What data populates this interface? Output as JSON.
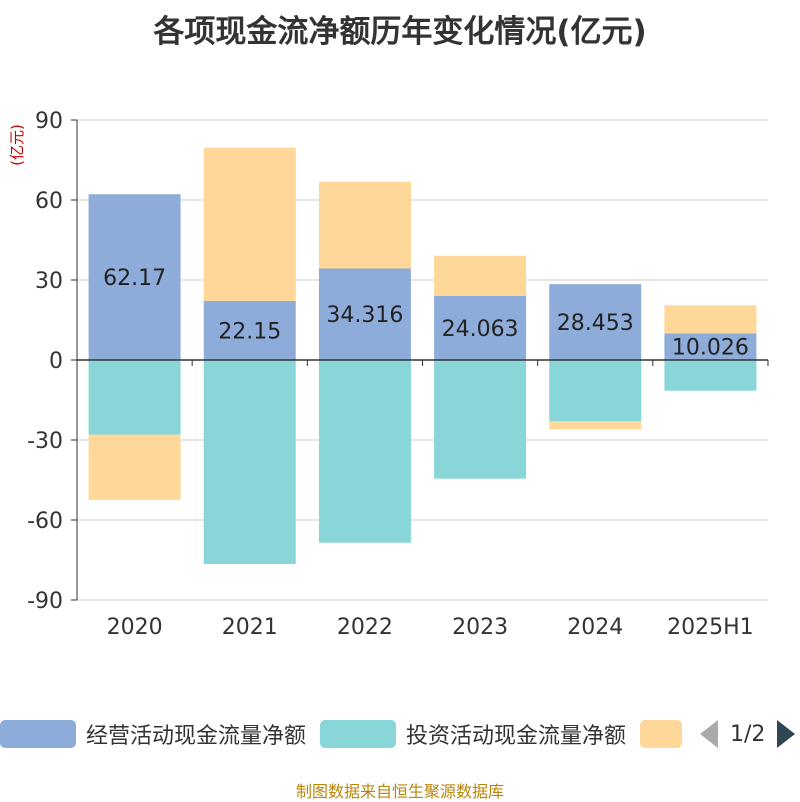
{
  "title": "各项现金流净额历年变化情况(亿元)",
  "source": "制图数据来自恒生聚源数据库",
  "pager": {
    "text": "1/2"
  },
  "colors": {
    "operating": "#8eacda",
    "investing": "#88d6d8",
    "financing": "#fed799"
  },
  "chart_data": {
    "type": "bar",
    "stacked": true,
    "ylabel": "(亿元)",
    "ylim": [
      -90,
      90
    ],
    "yticks": [
      90,
      60,
      30,
      0,
      -30,
      -60,
      -90
    ],
    "grid": true,
    "legend_position": "bottom",
    "categories": [
      "2020",
      "2021",
      "2022",
      "2023",
      "2024",
      "2025H1"
    ],
    "series": [
      {
        "name": "经营活动现金流量净额",
        "color_key": "operating",
        "values": [
          62.17,
          22.15,
          34.316,
          24.063,
          28.453,
          10.026
        ],
        "show_labels": true
      },
      {
        "name": "投资活动现金流量净额",
        "color_key": "investing",
        "values": [
          -28,
          -76.5,
          -68.5,
          -44.5,
          -23,
          -11.5
        ],
        "show_labels": false
      },
      {
        "name": "",
        "color_key": "financing",
        "values": [
          -24.5,
          57.5,
          32.5,
          15,
          -3,
          10.5
        ],
        "show_labels": false
      }
    ]
  }
}
